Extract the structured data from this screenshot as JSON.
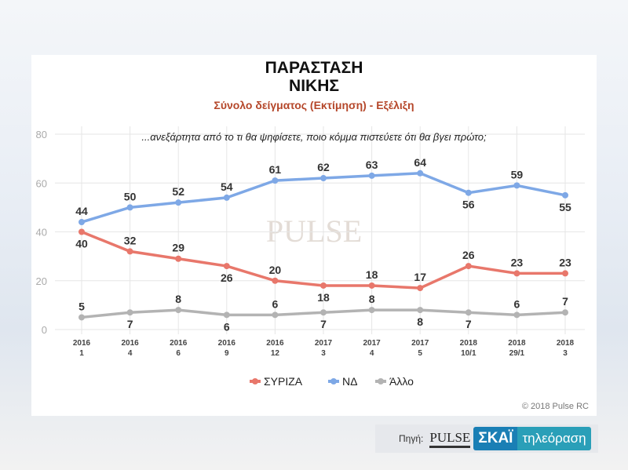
{
  "header": {
    "title_line1": "ΠΑΡΑΣΤΑΣΗ",
    "title_line2": "ΝΙΚΗΣ",
    "subtitle": "Σύνολο δείγματος   (Εκτίμηση) - Εξέλιξη",
    "question": "...ανεξάρτητα από το τι θα ψηφίσετε, ποιο κόμμα πιστεύετε ότι θα βγει πρώτο;"
  },
  "footer": {
    "copyright": "© 2018 Pulse RC",
    "source_label": "Πηγή:",
    "pulse_logo": "PULSE",
    "skai": "ΣΚΑΪ",
    "skai_tv": "τηλεόραση"
  },
  "watermark": "PULSE",
  "chart_data": {
    "type": "line",
    "categories": [
      [
        "2016",
        "1"
      ],
      [
        "2016",
        "4"
      ],
      [
        "2016",
        "6"
      ],
      [
        "2016",
        "9"
      ],
      [
        "2016",
        "12"
      ],
      [
        "2017",
        "3"
      ],
      [
        "2017",
        "4"
      ],
      [
        "2017",
        "5"
      ],
      [
        "2018",
        "10/1"
      ],
      [
        "2018",
        "29/1"
      ],
      [
        "2018",
        "3"
      ]
    ],
    "ylim": [
      0,
      80
    ],
    "yticks": [
      0,
      20,
      40,
      60,
      80
    ],
    "grid": true,
    "legend": "bottom",
    "series": [
      {
        "name": "ΣΥΡΙΖΑ",
        "color": "#e8776b",
        "values": [
          40,
          32,
          29,
          26,
          20,
          18,
          18,
          17,
          26,
          23,
          23
        ],
        "label_pos": [
          "below",
          "above",
          "above",
          "below",
          "above",
          "below",
          "above",
          "above",
          "above",
          "above",
          "above"
        ]
      },
      {
        "name": "ΝΔ",
        "color": "#7ea8e6",
        "values": [
          44,
          50,
          52,
          54,
          61,
          62,
          63,
          64,
          56,
          59,
          55
        ],
        "label_pos": [
          "above",
          "above",
          "above",
          "above",
          "above",
          "above",
          "above",
          "above",
          "below",
          "above",
          "below"
        ]
      },
      {
        "name": "Άλλο",
        "color": "#b3b3b3",
        "values": [
          5,
          7,
          8,
          6,
          6,
          7,
          8,
          8,
          7,
          6,
          7
        ],
        "label_pos": [
          "above",
          "below",
          "above",
          "below",
          "above",
          "below",
          "above",
          "below",
          "below",
          "above",
          "above"
        ]
      }
    ]
  }
}
